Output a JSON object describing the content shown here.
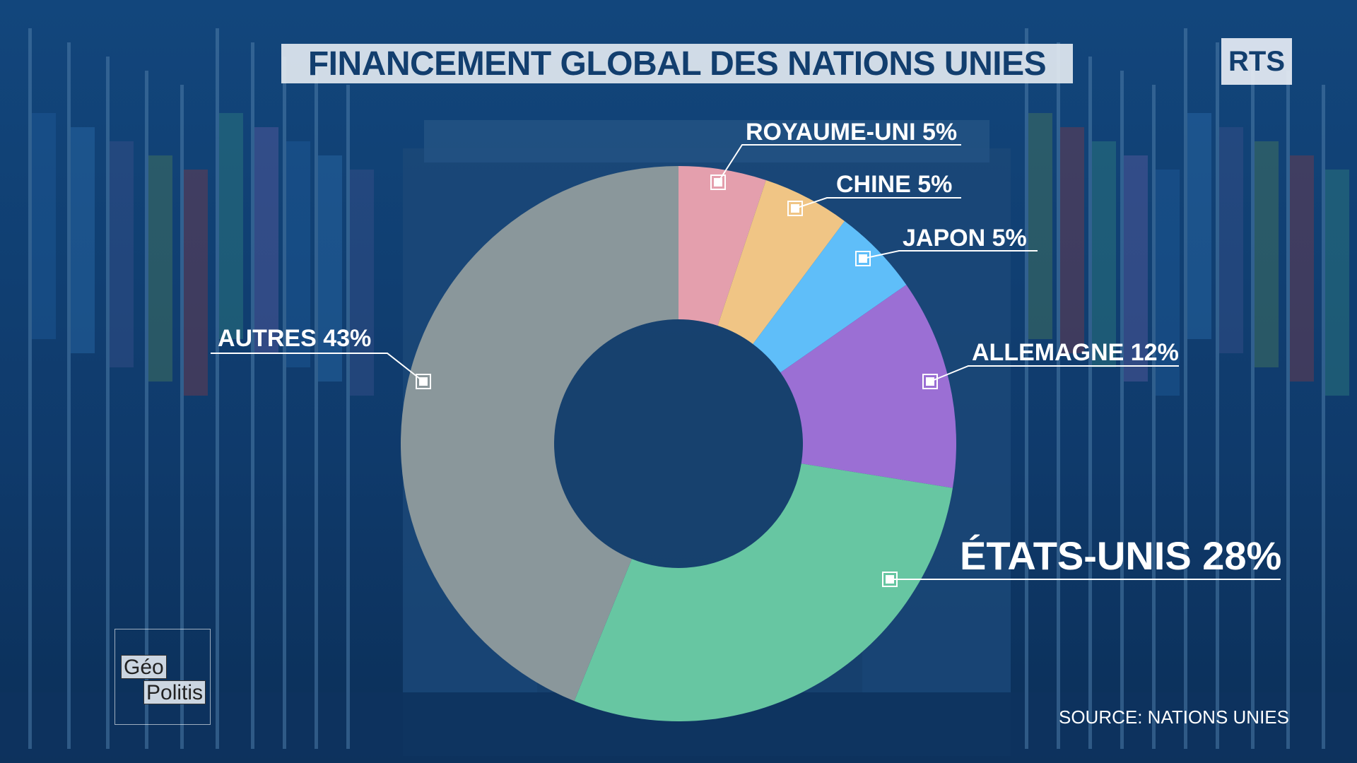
{
  "title": "FINANCEMENT GLOBAL DES NATIONS UNIES",
  "broadcaster_logo": "RTS",
  "source": "SOURCE: NATIONS UNIES",
  "show_logo": {
    "row1": "Géo",
    "row2": "Politis"
  },
  "colors": {
    "background": "#0f3a6b",
    "title_text": "#123e6e",
    "royaume_uni": "#e49fad",
    "chine": "#f0c585",
    "japon": "#5fbef9",
    "allemagne": "#9b6fd4",
    "etats_unis": "#67c6a2",
    "autres": "#8a979b"
  },
  "chart_data": {
    "type": "pie",
    "title": "FINANCEMENT GLOBAL DES NATIONS UNIES",
    "donut": true,
    "slices": [
      {
        "label": "ROYAUME-UNI 5%",
        "name": "ROYAUME-UNI",
        "value": 5,
        "color": "#e49fad"
      },
      {
        "label": "CHINE 5%",
        "name": "CHINE",
        "value": 5,
        "color": "#f0c585"
      },
      {
        "label": "JAPON 5%",
        "name": "JAPON",
        "value": 5,
        "color": "#5fbef9"
      },
      {
        "label": "ALLEMAGNE 12%",
        "name": "ALLEMAGNE",
        "value": 12,
        "color": "#9b6fd4"
      },
      {
        "label": "ÉTATS-UNIS 28%",
        "name": "ÉTATS-UNIS",
        "value": 28,
        "color": "#67c6a2"
      },
      {
        "label": "AUTRES 43%",
        "name": "AUTRES",
        "value": 43,
        "color": "#8a979b"
      }
    ]
  }
}
